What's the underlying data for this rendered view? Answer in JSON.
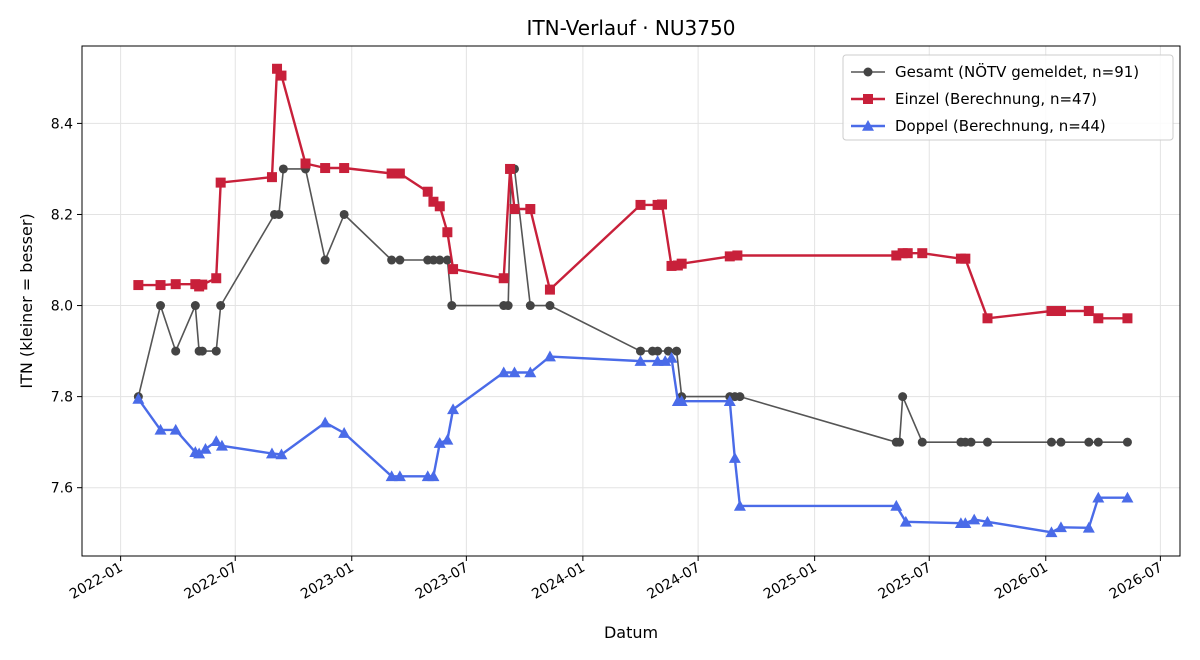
{
  "chart_data": {
    "type": "line",
    "title": "ITN-Verlauf · NU3750",
    "xlabel": "Datum",
    "ylabel": "ITN  (kleiner = besser)",
    "xlim": [
      "2021-11-01",
      "2026-08-01"
    ],
    "ylim": [
      7.45,
      8.57
    ],
    "x_ticks": [
      "2022-01",
      "2022-07",
      "2023-01",
      "2023-07",
      "2024-01",
      "2024-07",
      "2025-01",
      "2025-07",
      "2026-01",
      "2026-07"
    ],
    "y_ticks": [
      7.6,
      7.8,
      8.0,
      8.2,
      8.4
    ],
    "grid": true,
    "legend_position": "top-right",
    "series": [
      {
        "name": "Gesamt (NÖTV gemeldet, n=91)",
        "color": "#555555",
        "marker": "circle",
        "points": [
          [
            "2022-01-29",
            7.8
          ],
          [
            "2022-03-05",
            8.0
          ],
          [
            "2022-03-29",
            7.9
          ],
          [
            "2022-04-29",
            8.0
          ],
          [
            "2022-05-05",
            7.9
          ],
          [
            "2022-05-10",
            7.9
          ],
          [
            "2022-06-01",
            7.9
          ],
          [
            "2022-06-08",
            8.0
          ],
          [
            "2022-09-01",
            8.2
          ],
          [
            "2022-09-08",
            8.2
          ],
          [
            "2022-09-15",
            8.3
          ],
          [
            "2022-10-20",
            8.3
          ],
          [
            "2022-11-20",
            8.1
          ],
          [
            "2022-12-20",
            8.2
          ],
          [
            "2023-03-05",
            8.1
          ],
          [
            "2023-03-18",
            8.1
          ],
          [
            "2023-05-01",
            8.1
          ],
          [
            "2023-05-10",
            8.1
          ],
          [
            "2023-05-20",
            8.1
          ],
          [
            "2023-06-01",
            8.1
          ],
          [
            "2023-06-08",
            8.0
          ],
          [
            "2023-08-29",
            8.0
          ],
          [
            "2023-09-05",
            8.0
          ],
          [
            "2023-09-10",
            8.3
          ],
          [
            "2023-09-15",
            8.3
          ],
          [
            "2023-10-10",
            8.0
          ],
          [
            "2023-11-10",
            8.0
          ],
          [
            "2024-04-01",
            7.9
          ],
          [
            "2024-04-20",
            7.9
          ],
          [
            "2024-04-28",
            7.9
          ],
          [
            "2024-05-15",
            7.9
          ],
          [
            "2024-05-28",
            7.9
          ],
          [
            "2024-06-05",
            7.8
          ],
          [
            "2024-08-20",
            7.8
          ],
          [
            "2024-08-28",
            7.8
          ],
          [
            "2024-09-05",
            7.8
          ],
          [
            "2025-05-10",
            7.7
          ],
          [
            "2025-05-15",
            7.7
          ],
          [
            "2025-05-20",
            7.8
          ],
          [
            "2025-06-20",
            7.7
          ],
          [
            "2025-08-20",
            7.7
          ],
          [
            "2025-08-27",
            7.7
          ],
          [
            "2025-09-05",
            7.7
          ],
          [
            "2025-10-01",
            7.7
          ],
          [
            "2026-01-10",
            7.7
          ],
          [
            "2026-01-25",
            7.7
          ],
          [
            "2026-03-10",
            7.7
          ],
          [
            "2026-03-25",
            7.7
          ],
          [
            "2026-05-10",
            7.7
          ]
        ]
      },
      {
        "name": "Einzel (Berechnung, n=47)",
        "color": "#c8203a",
        "marker": "square",
        "points": [
          [
            "2022-01-29",
            8.045
          ],
          [
            "2022-03-05",
            8.045
          ],
          [
            "2022-03-29",
            8.047
          ],
          [
            "2022-04-29",
            8.047
          ],
          [
            "2022-05-05",
            8.042
          ],
          [
            "2022-05-10",
            8.046
          ],
          [
            "2022-06-01",
            8.06
          ],
          [
            "2022-06-08",
            8.27
          ],
          [
            "2022-08-28",
            8.282
          ],
          [
            "2022-09-05",
            8.52
          ],
          [
            "2022-09-12",
            8.505
          ],
          [
            "2022-10-20",
            8.312
          ],
          [
            "2022-11-20",
            8.302
          ],
          [
            "2022-12-20",
            8.302
          ],
          [
            "2023-03-05",
            8.29
          ],
          [
            "2023-03-18",
            8.29
          ],
          [
            "2023-05-01",
            8.25
          ],
          [
            "2023-05-10",
            8.228
          ],
          [
            "2023-05-20",
            8.218
          ],
          [
            "2023-06-01",
            8.161
          ],
          [
            "2023-06-10",
            8.08
          ],
          [
            "2023-08-29",
            8.06
          ],
          [
            "2023-09-08",
            8.3
          ],
          [
            "2023-09-15",
            8.212
          ],
          [
            "2023-10-10",
            8.212
          ],
          [
            "2023-11-10",
            8.035
          ],
          [
            "2024-04-01",
            8.221
          ],
          [
            "2024-04-28",
            8.221
          ],
          [
            "2024-05-05",
            8.222
          ],
          [
            "2024-05-20",
            8.087
          ],
          [
            "2024-05-30",
            8.088
          ],
          [
            "2024-06-05",
            8.092
          ],
          [
            "2024-08-20",
            8.108
          ],
          [
            "2024-09-01",
            8.11
          ],
          [
            "2025-05-10",
            8.11
          ],
          [
            "2025-05-20",
            8.115
          ],
          [
            "2025-05-28",
            8.115
          ],
          [
            "2025-06-20",
            8.115
          ],
          [
            "2025-08-20",
            8.103
          ],
          [
            "2025-08-27",
            8.103
          ],
          [
            "2025-10-01",
            7.972
          ],
          [
            "2026-01-10",
            7.988
          ],
          [
            "2026-01-25",
            7.988
          ],
          [
            "2026-03-10",
            7.988
          ],
          [
            "2026-03-25",
            7.972
          ],
          [
            "2026-05-10",
            7.972
          ]
        ]
      },
      {
        "name": "Doppel (Berechnung, n=44)",
        "color": "#4a6be8",
        "marker": "triangle",
        "points": [
          [
            "2022-01-29",
            7.795
          ],
          [
            "2022-03-05",
            7.727
          ],
          [
            "2022-03-29",
            7.727
          ],
          [
            "2022-04-29",
            7.678
          ],
          [
            "2022-05-05",
            7.675
          ],
          [
            "2022-05-15",
            7.685
          ],
          [
            "2022-06-01",
            7.702
          ],
          [
            "2022-06-10",
            7.692
          ],
          [
            "2022-08-28",
            7.675
          ],
          [
            "2022-09-12",
            7.673
          ],
          [
            "2022-11-20",
            7.743
          ],
          [
            "2022-12-20",
            7.72
          ],
          [
            "2023-03-05",
            7.625
          ],
          [
            "2023-03-18",
            7.625
          ],
          [
            "2023-05-01",
            7.625
          ],
          [
            "2023-05-10",
            7.625
          ],
          [
            "2023-05-20",
            7.698
          ],
          [
            "2023-06-01",
            7.705
          ],
          [
            "2023-06-10",
            7.772
          ],
          [
            "2023-08-29",
            7.853
          ],
          [
            "2023-09-15",
            7.853
          ],
          [
            "2023-10-10",
            7.853
          ],
          [
            "2023-11-10",
            7.888
          ],
          [
            "2024-04-01",
            7.878
          ],
          [
            "2024-04-28",
            7.878
          ],
          [
            "2024-05-10",
            7.878
          ],
          [
            "2024-05-20",
            7.885
          ],
          [
            "2024-05-30",
            7.79
          ],
          [
            "2024-06-05",
            7.79
          ],
          [
            "2024-08-20",
            7.79
          ],
          [
            "2024-08-28",
            7.665
          ],
          [
            "2024-09-05",
            7.56
          ],
          [
            "2025-05-10",
            7.56
          ],
          [
            "2025-05-25",
            7.525
          ],
          [
            "2025-08-20",
            7.522
          ],
          [
            "2025-08-27",
            7.522
          ],
          [
            "2025-09-10",
            7.53
          ],
          [
            "2025-10-01",
            7.525
          ],
          [
            "2026-01-10",
            7.502
          ],
          [
            "2026-01-25",
            7.513
          ],
          [
            "2026-03-10",
            7.512
          ],
          [
            "2026-03-25",
            7.578
          ],
          [
            "2026-05-10",
            7.578
          ]
        ]
      }
    ]
  }
}
